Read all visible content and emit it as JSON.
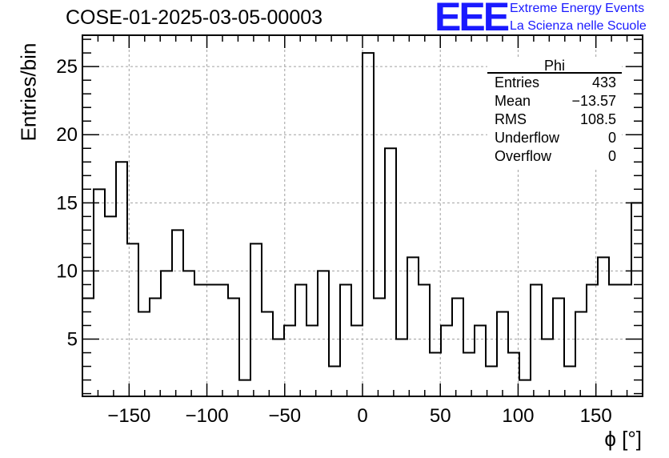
{
  "header": {
    "run_title": "COSE-01-2025-03-05-00003",
    "logo_mark": "EEE",
    "logo_line1": "Extreme Energy Events",
    "logo_line2": "La Scienza nelle Scuole"
  },
  "stats_box": {
    "name": "Phi",
    "rows": [
      {
        "label": "Entries",
        "value": "433"
      },
      {
        "label": "Mean",
        "value": "−13.57"
      },
      {
        "label": "RMS",
        "value": "108.5"
      },
      {
        "label": "Underflow",
        "value": "0"
      },
      {
        "label": "Overflow",
        "value": "0"
      }
    ]
  },
  "colors": {
    "axis": "#000000",
    "grid": "#a0a0a0",
    "histogram": "#000000",
    "logo": "#1a1aff"
  },
  "chart_data": {
    "type": "bar",
    "histogram_style": "step",
    "title": "COSE-01-2025-03-05-00003",
    "xlabel": "ϕ [°]",
    "ylabel": "Entries/bin",
    "xlim": [
      -180,
      180
    ],
    "ylim": [
      0.8,
      27.3
    ],
    "bin_width": 7.2,
    "bin_edges_start": -180,
    "values": [
      8,
      16,
      14,
      18,
      12,
      7,
      8,
      10,
      13,
      10,
      9,
      9,
      9,
      8,
      2,
      12,
      7,
      5,
      6,
      9,
      6,
      10,
      3,
      9,
      6,
      26,
      8,
      19,
      5,
      11,
      9,
      4,
      6,
      8,
      4,
      6,
      3,
      7,
      4,
      2,
      9,
      5,
      8,
      3,
      7,
      9,
      11,
      9,
      9,
      15
    ],
    "xticks": [
      -150,
      -100,
      -50,
      0,
      50,
      100,
      150
    ],
    "xtick_labels": [
      "−150",
      "−100",
      "−50",
      "0",
      "50",
      "100",
      "150"
    ],
    "yticks": [
      5,
      10,
      15,
      20,
      25
    ],
    "ytick_labels": [
      "5",
      "10",
      "15",
      "20",
      "25"
    ],
    "grid": true,
    "legend": "top-right stats box"
  }
}
